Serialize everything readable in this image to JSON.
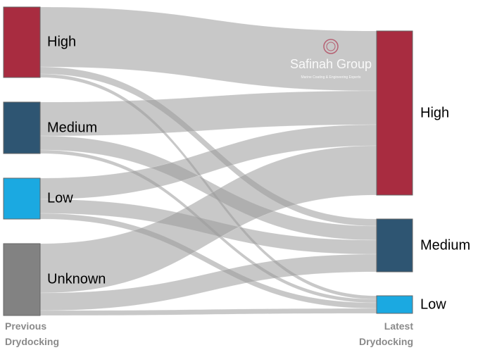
{
  "chart_data": {
    "type": "sankey",
    "source_title": "Previous Drydocking",
    "target_title": "Latest Drydocking",
    "watermark": {
      "name": "Safinah Group",
      "tagline": "Marine Coating & Engineering Experts"
    },
    "target_nodes": [
      {
        "name": "High",
        "color": "#a82c40"
      },
      {
        "name": "Medium",
        "color": "#2e5572"
      },
      {
        "name": "Low",
        "color": "#1ba9e1"
      }
    ],
    "source_nodes": [
      {
        "name": "High",
        "color": "#a82c40",
        "flows": [
          85,
          10,
          5
        ]
      },
      {
        "name": "Medium",
        "color": "#2e5572",
        "flows": [
          48,
          20,
          5
        ]
      },
      {
        "name": "Low",
        "color": "#1ba9e1",
        "flows": [
          30,
          20,
          8
        ]
      },
      {
        "name": "Unknown",
        "color": "#828282",
        "flows": [
          70,
          25,
          7
        ]
      }
    ],
    "link_color": "#9a9a9a"
  }
}
